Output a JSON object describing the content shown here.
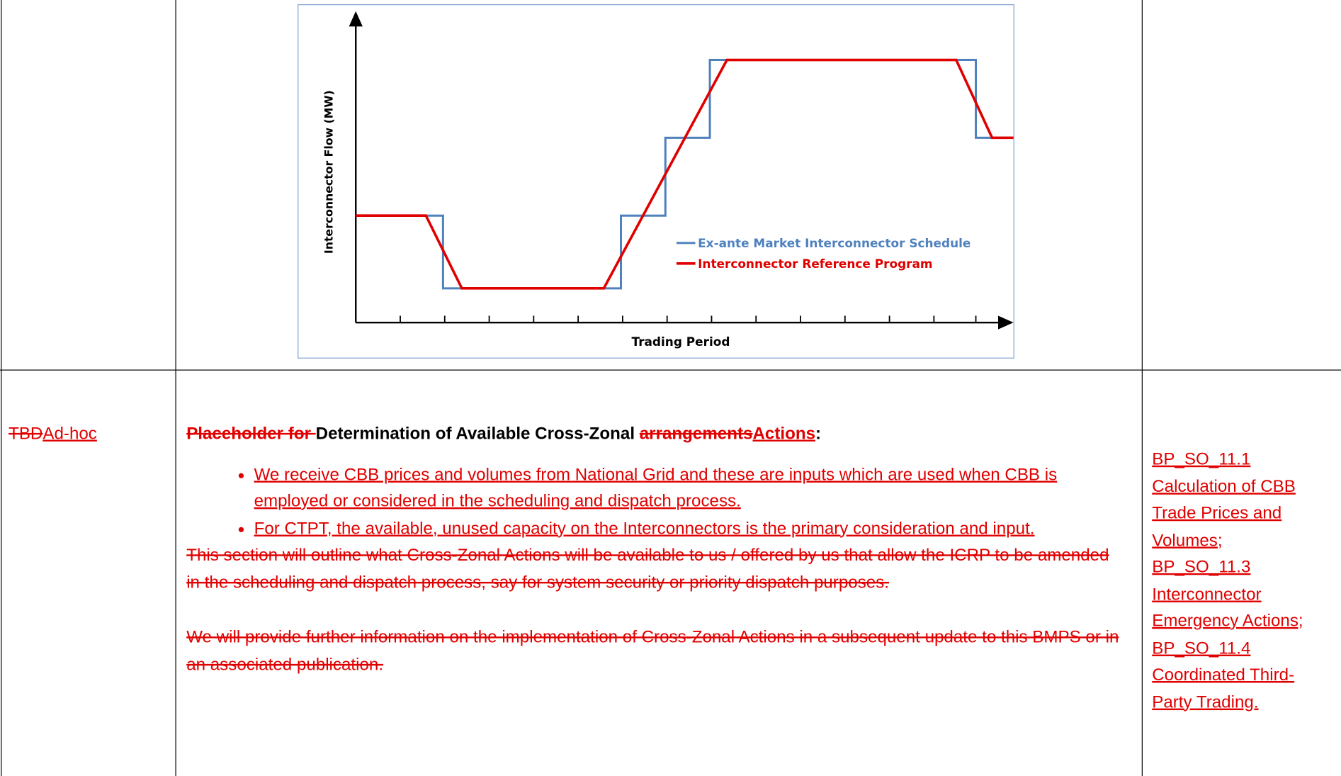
{
  "figure": {
    "y_axis_label": "Interconnector Flow (MW)",
    "x_axis_label": "Trading Period",
    "legend": [
      "Ex-ante Market Interconnector Schedule",
      "Interconnector Reference Program"
    ]
  },
  "row": {
    "left_cell": {
      "deleted": "TBD",
      "inserted": "Ad-hoc"
    },
    "heading": {
      "deleted_1": "Placeholder for ",
      "text": "Determination of Available Cross-Zonal ",
      "deleted_2": "arrangements",
      "inserted": "Actions",
      "end": ":"
    },
    "bullets": [
      "We receive CBB prices and volumes from National Grid and these are inputs which are used when CBB is employed or considered in the scheduling and dispatch process.",
      "For CTPT, the available, unused capacity on the Interconnectors is the primary consideration and input."
    ],
    "deleted_paragraphs": [
      "This section will outline what Cross-Zonal Actions will be available to us / offered by us that allow the ICRP to be amended in the scheduling and dispatch process, say for system security or priority dispatch purposes.",
      "We will provide further information on the implementation of Cross-Zonal Actions in a subsequent update to this BMPS or in an associated publication."
    ],
    "references": [
      "BP_SO_11.1 Calculation of CBB Trade Prices and Volumes;",
      "BP_SO_11.3 Interconnector Emergency Actions;",
      "BP_SO_11.4 Coordinated Third-Party Trading."
    ]
  }
}
